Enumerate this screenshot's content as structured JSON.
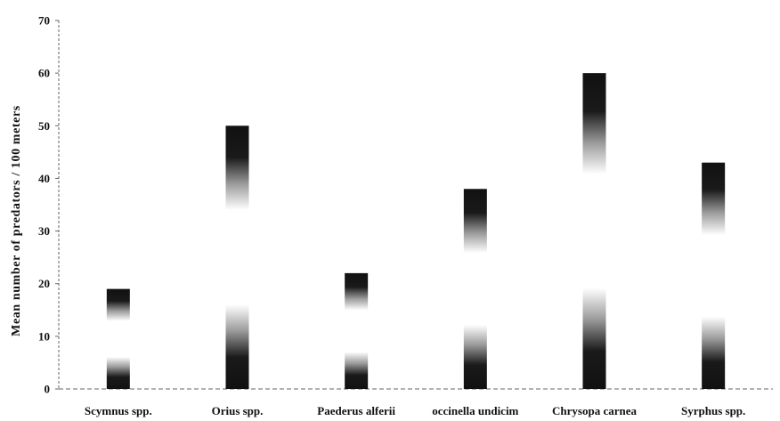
{
  "chart_data": {
    "type": "bar",
    "title": "",
    "xlabel": "",
    "ylabel": "Mean number of predators / 100 meters",
    "ylim": [
      0,
      70
    ],
    "yticks": [
      0,
      10,
      20,
      30,
      40,
      50,
      60,
      70
    ],
    "categories": [
      "Scymnus spp.",
      "Orius spp.",
      "Paederus alferii",
      "occinella undicim",
      "Chrysopa carnea",
      "Syrphus spp."
    ],
    "values": [
      19,
      50,
      22,
      38,
      60,
      43
    ],
    "grid": false,
    "legend": "none",
    "colors": {
      "bar_dark": "#111111",
      "bar_mid": "#9a9a9a",
      "bar_light": "#ffffff",
      "axis": "#666666"
    }
  }
}
